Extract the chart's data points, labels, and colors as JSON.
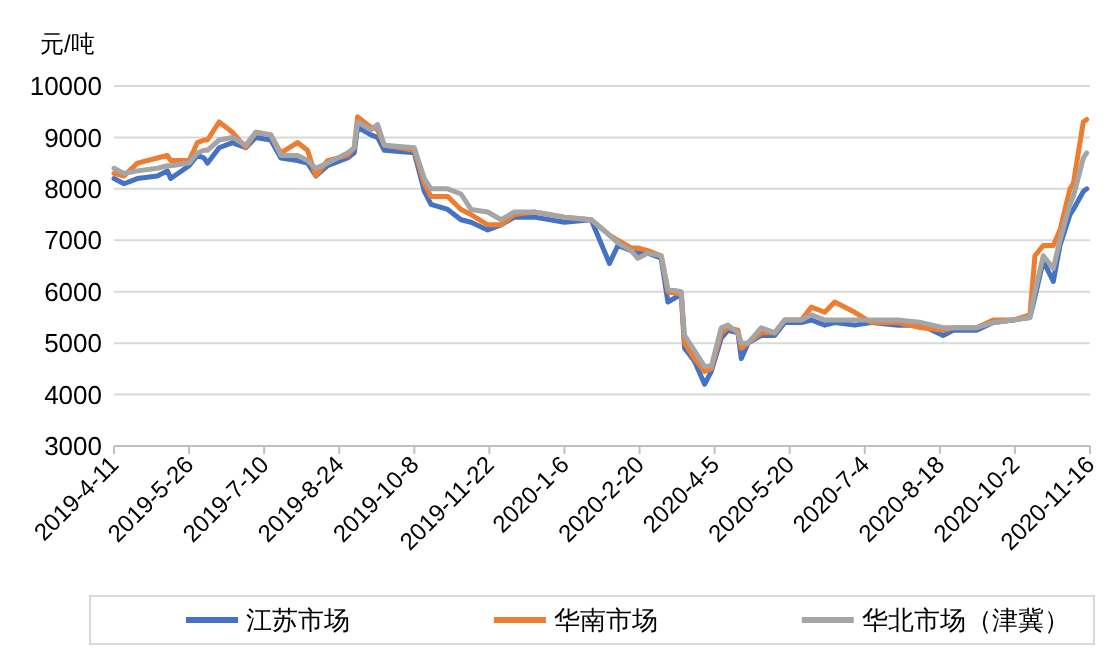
{
  "chart_data": {
    "type": "line",
    "ylabel": "元/吨",
    "legend": "bottom",
    "grid": "y",
    "line_style": "solid",
    "marker": "none",
    "xlim": [
      "2019-04-11",
      "2020-11-16"
    ],
    "ylim": [
      3000,
      10000
    ],
    "yticks": [
      3000,
      4000,
      5000,
      6000,
      7000,
      8000,
      9000,
      10000
    ],
    "xticks": [
      {
        "value": "2019-04-11",
        "label": "2019-4-11"
      },
      {
        "value": "2019-05-26",
        "label": "2019-5-26"
      },
      {
        "value": "2019-07-10",
        "label": "2019-7-10"
      },
      {
        "value": "2019-08-24",
        "label": "2019-8-24"
      },
      {
        "value": "2019-10-08",
        "label": "2019-10-8"
      },
      {
        "value": "2019-11-22",
        "label": "2019-11-22"
      },
      {
        "value": "2020-01-06",
        "label": "2020-1-6"
      },
      {
        "value": "2020-02-20",
        "label": "2020-2-20"
      },
      {
        "value": "2020-04-05",
        "label": "2020-4-5"
      },
      {
        "value": "2020-05-20",
        "label": "2020-5-20"
      },
      {
        "value": "2020-07-04",
        "label": "2020-7-4"
      },
      {
        "value": "2020-08-18",
        "label": "2020-8-18"
      },
      {
        "value": "2020-10-02",
        "label": "2020-10-2"
      },
      {
        "value": "2020-11-16",
        "label": "2020-11-16"
      }
    ],
    "x": [
      "2019-04-11",
      "2019-04-17",
      "2019-04-25",
      "2019-05-07",
      "2019-05-13",
      "2019-05-15",
      "2019-05-26",
      "2019-05-31",
      "2019-06-04",
      "2019-06-06",
      "2019-06-13",
      "2019-06-21",
      "2019-06-29",
      "2019-07-05",
      "2019-07-14",
      "2019-07-20",
      "2019-07-30",
      "2019-08-05",
      "2019-08-10",
      "2019-08-17",
      "2019-08-29",
      "2019-09-02",
      "2019-09-04",
      "2019-09-12",
      "2019-09-16",
      "2019-09-20",
      "2019-10-08",
      "2019-10-14",
      "2019-10-18",
      "2019-10-28",
      "2019-11-05",
      "2019-11-11",
      "2019-11-21",
      "2019-11-29",
      "2019-12-07",
      "2019-12-19",
      "2020-01-06",
      "2020-01-22",
      "2020-02-02",
      "2020-02-07",
      "2020-02-15",
      "2020-02-19",
      "2020-02-25",
      "2020-03-04",
      "2020-03-08",
      "2020-03-16",
      "2020-03-18",
      "2020-03-24",
      "2020-03-30",
      "2020-04-03",
      "2020-04-09",
      "2020-04-13",
      "2020-04-19",
      "2020-04-21",
      "2020-04-25",
      "2020-05-03",
      "2020-05-11",
      "2020-05-17",
      "2020-05-27",
      "2020-06-02",
      "2020-06-10",
      "2020-06-16",
      "2020-06-28",
      "2020-07-08",
      "2020-07-24",
      "2020-08-07",
      "2020-08-20",
      "2020-08-26",
      "2020-09-09",
      "2020-09-19",
      "2020-10-01",
      "2020-10-11",
      "2020-10-14",
      "2020-10-19",
      "2020-10-25",
      "2020-10-29",
      "2020-11-04",
      "2020-11-06",
      "2020-11-12",
      "2020-11-14"
    ],
    "series": [
      {
        "name": "江苏市场",
        "color": "#4472c4",
        "values": [
          8200,
          8100,
          8200,
          8250,
          8350,
          8200,
          8450,
          8650,
          8600,
          8500,
          8800,
          8900,
          8800,
          9000,
          8950,
          8600,
          8550,
          8500,
          8250,
          8450,
          8600,
          8700,
          9200,
          9050,
          9000,
          8750,
          8700,
          7950,
          7700,
          7600,
          7400,
          7350,
          7200,
          7300,
          7450,
          7450,
          7350,
          7400,
          6550,
          6900,
          6800,
          6750,
          6750,
          6650,
          5800,
          5950,
          4900,
          4650,
          4200,
          4450,
          5100,
          5250,
          5200,
          4700,
          5000,
          5150,
          5150,
          5400,
          5400,
          5450,
          5350,
          5400,
          5350,
          5400,
          5350,
          5350,
          5150,
          5250,
          5250,
          5400,
          5450,
          5500,
          5900,
          6600,
          6200,
          6900,
          7500,
          7600,
          7950,
          8000
        ]
      },
      {
        "name": "华南市场",
        "color": "#ed7d31",
        "values": [
          8300,
          8250,
          8500,
          8600,
          8650,
          8550,
          8550,
          8900,
          8950,
          8950,
          9300,
          9100,
          8800,
          9100,
          9050,
          8700,
          8900,
          8750,
          8250,
          8550,
          8650,
          8800,
          9400,
          9200,
          9150,
          8850,
          8750,
          8100,
          7850,
          7850,
          7600,
          7500,
          7300,
          7300,
          7500,
          7550,
          7450,
          7400,
          7100,
          7000,
          6850,
          6850,
          6800,
          6700,
          6000,
          5950,
          5000,
          4700,
          4450,
          4500,
          5200,
          5300,
          5250,
          4900,
          5000,
          5200,
          5200,
          5450,
          5450,
          5700,
          5600,
          5800,
          5600,
          5400,
          5400,
          5300,
          5250,
          5300,
          5300,
          5450,
          5450,
          5550,
          6700,
          6900,
          6900,
          7200,
          8000,
          8100,
          9300,
          9350
        ]
      },
      {
        "name": "华北市场（津冀）",
        "color": "#a5a5a5",
        "values": [
          8400,
          8300,
          8350,
          8400,
          8450,
          8450,
          8500,
          8700,
          8750,
          8750,
          8950,
          9000,
          8850,
          9100,
          9050,
          8650,
          8650,
          8550,
          8400,
          8500,
          8700,
          8800,
          9300,
          9150,
          9250,
          8850,
          8800,
          8200,
          8000,
          8000,
          7900,
          7600,
          7550,
          7400,
          7550,
          7550,
          7450,
          7400,
          7100,
          6950,
          6800,
          6650,
          6750,
          6700,
          6050,
          6000,
          5150,
          4850,
          4550,
          4550,
          5300,
          5350,
          5200,
          5000,
          5000,
          5300,
          5200,
          5450,
          5450,
          5550,
          5450,
          5450,
          5450,
          5450,
          5450,
          5400,
          5300,
          5300,
          5300,
          5400,
          5450,
          5500,
          6000,
          6700,
          6450,
          7000,
          7700,
          7850,
          8600,
          8700
        ]
      }
    ]
  }
}
